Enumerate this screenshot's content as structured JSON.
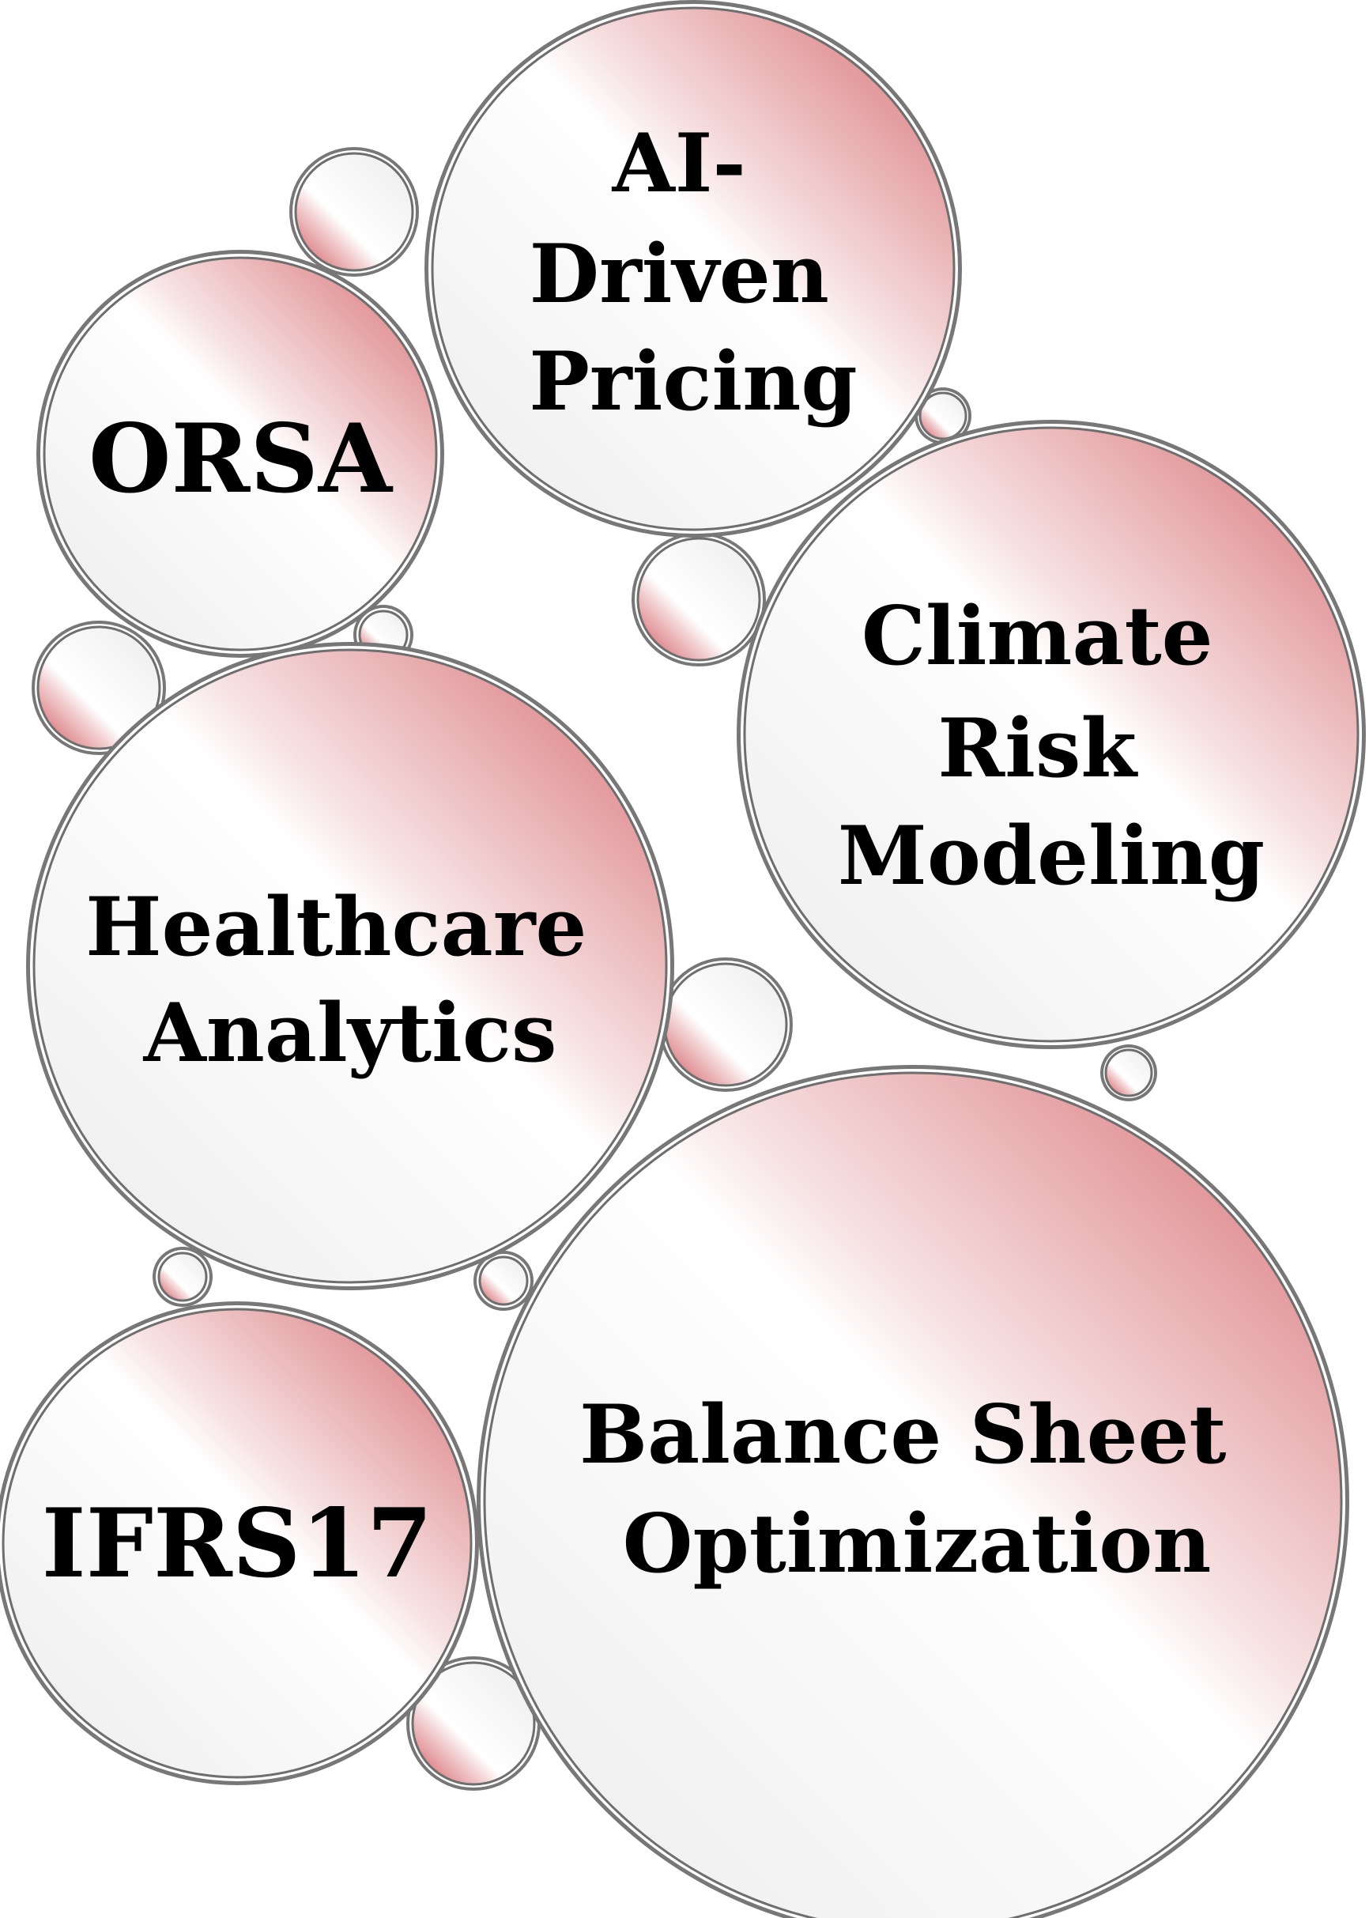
{
  "diagram": {
    "topics": {
      "orsa": [
        "ORSA"
      ],
      "ai_pricing": [
        "AI-",
        "Driven",
        "Pricing"
      ],
      "climate": [
        "Climate",
        "Risk",
        "Modeling"
      ],
      "healthcare": [
        "Healthcare",
        "Analytics"
      ],
      "ifrs17": [
        "IFRS17"
      ],
      "balance_sheet": [
        "Balance Sheet",
        "Optimization"
      ]
    }
  },
  "colors": {
    "bubble_fill": "#ffffff",
    "bubble_shade": "#eeeeee",
    "accent": "#d05a5e",
    "outline": "#6e6e6e",
    "text": "#000000"
  }
}
